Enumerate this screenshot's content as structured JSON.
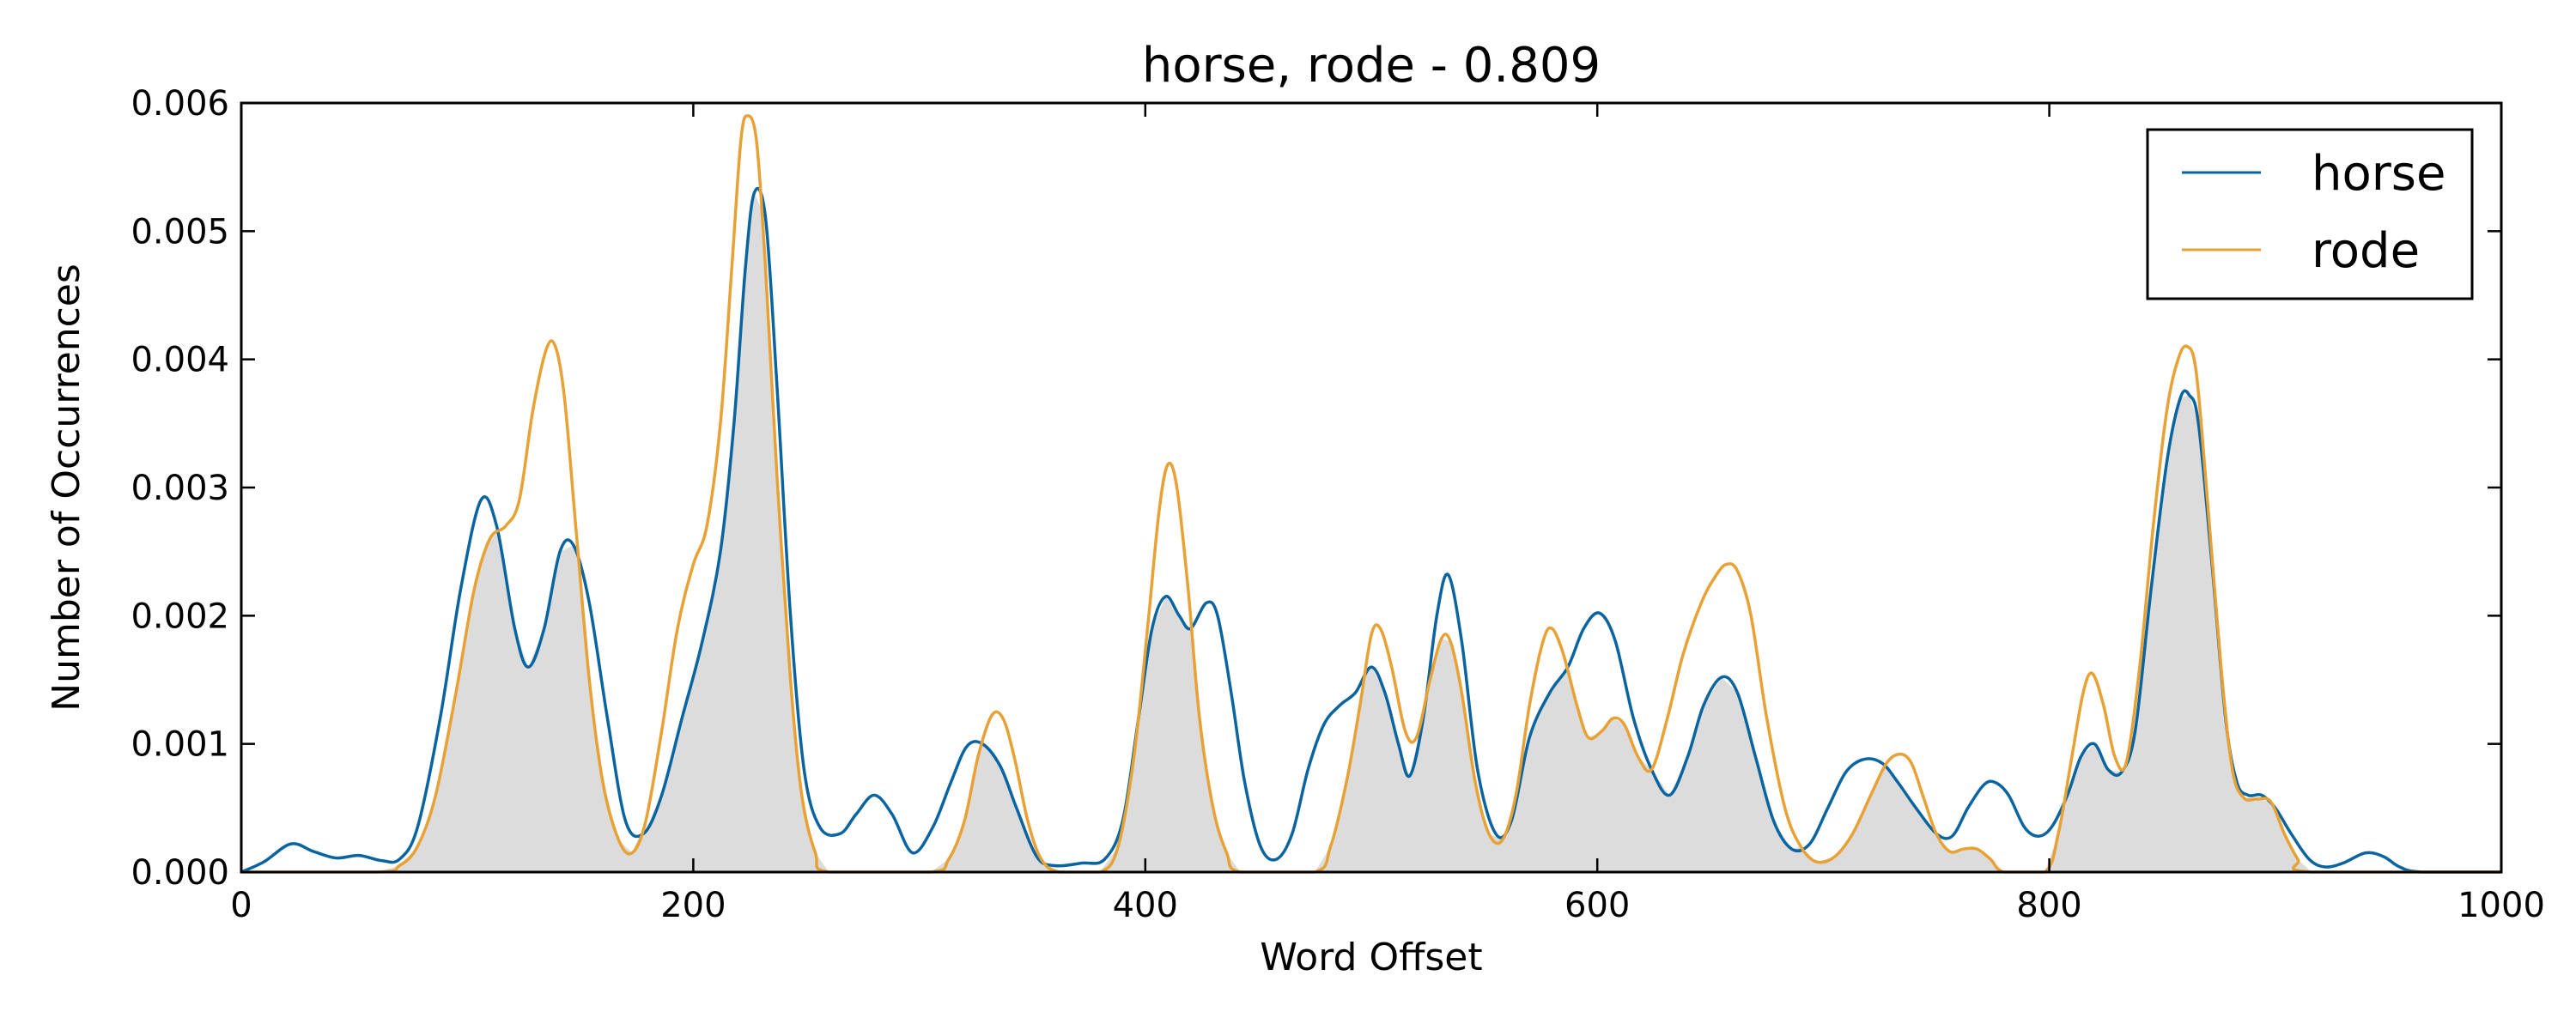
{
  "chart_data": {
    "type": "line",
    "title": "horse, rode - 0.809",
    "xlabel": "Word Offset",
    "ylabel": "Number of Occurrences",
    "xlim": [
      0,
      1000
    ],
    "ylim": [
      0,
      0.006
    ],
    "xticks": [
      0,
      200,
      400,
      600,
      800,
      1000
    ],
    "yticks": [
      0,
      0.001,
      0.002,
      0.003,
      0.004,
      0.005,
      0.006
    ],
    "xtick_labels": [
      "0",
      "200",
      "400",
      "600",
      "800",
      "1000"
    ],
    "ytick_labels": [
      "0.000",
      "0.001",
      "0.002",
      "0.003",
      "0.004",
      "0.005",
      "0.006"
    ],
    "grid": false,
    "legend_position": "top-right",
    "overlap_fill_color": "#dcdcdc",
    "series": [
      {
        "name": "horse",
        "color": "#0a64a0",
        "points": [
          [
            0,
            0.0
          ],
          [
            10,
            8e-05
          ],
          [
            22,
            0.00022
          ],
          [
            32,
            0.00016
          ],
          [
            42,
            0.00011
          ],
          [
            52,
            0.00013
          ],
          [
            62,
            9e-05
          ],
          [
            70,
            0.0001
          ],
          [
            78,
            0.00035
          ],
          [
            88,
            0.0012
          ],
          [
            97,
            0.0022
          ],
          [
            106,
            0.0029
          ],
          [
            113,
            0.0027
          ],
          [
            121,
            0.0019
          ],
          [
            127,
            0.0016
          ],
          [
            134,
            0.0019
          ],
          [
            141,
            0.0025
          ],
          [
            147,
            0.00255
          ],
          [
            154,
            0.0021
          ],
          [
            162,
            0.0012
          ],
          [
            170,
            0.0004
          ],
          [
            178,
            0.0003
          ],
          [
            186,
            0.0006
          ],
          [
            195,
            0.0012
          ],
          [
            204,
            0.0018
          ],
          [
            212,
            0.0025
          ],
          [
            218,
            0.0035
          ],
          [
            223,
            0.0047
          ],
          [
            227,
            0.0053
          ],
          [
            232,
            0.0051
          ],
          [
            237,
            0.0038
          ],
          [
            243,
            0.002
          ],
          [
            249,
            0.0008
          ],
          [
            256,
            0.00035
          ],
          [
            265,
            0.0003
          ],
          [
            272,
            0.00045
          ],
          [
            280,
            0.0006
          ],
          [
            288,
            0.00045
          ],
          [
            297,
            0.00015
          ],
          [
            306,
            0.00035
          ],
          [
            314,
            0.0007
          ],
          [
            321,
            0.00098
          ],
          [
            328,
            0.001
          ],
          [
            336,
            0.00082
          ],
          [
            343,
            0.0005
          ],
          [
            352,
            0.00012
          ],
          [
            360,
            5e-05
          ],
          [
            372,
            7e-05
          ],
          [
            382,
            0.0001
          ],
          [
            390,
            0.0004
          ],
          [
            397,
            0.0012
          ],
          [
            403,
            0.0019
          ],
          [
            409,
            0.00215
          ],
          [
            415,
            0.002
          ],
          [
            420,
            0.0019
          ],
          [
            427,
            0.0021
          ],
          [
            432,
            0.002
          ],
          [
            438,
            0.0014
          ],
          [
            444,
            0.0007
          ],
          [
            451,
            0.0002
          ],
          [
            458,
            0.0001
          ],
          [
            465,
            0.0003
          ],
          [
            472,
            0.0008
          ],
          [
            479,
            0.00115
          ],
          [
            486,
            0.0013
          ],
          [
            493,
            0.0014
          ],
          [
            500,
            0.0016
          ],
          [
            506,
            0.0014
          ],
          [
            512,
            0.001
          ],
          [
            517,
            0.00075
          ],
          [
            523,
            0.0012
          ],
          [
            529,
            0.002
          ],
          [
            534,
            0.00232
          ],
          [
            540,
            0.0018
          ],
          [
            547,
            0.0008
          ],
          [
            555,
            0.0003
          ],
          [
            562,
            0.0004
          ],
          [
            570,
            0.00105
          ],
          [
            579,
            0.0014
          ],
          [
            587,
            0.0016
          ],
          [
            594,
            0.0019
          ],
          [
            601,
            0.00202
          ],
          [
            608,
            0.0018
          ],
          [
            616,
            0.0012
          ],
          [
            624,
            0.0008
          ],
          [
            632,
            0.0006
          ],
          [
            640,
            0.0009
          ],
          [
            647,
            0.0013
          ],
          [
            655,
            0.00152
          ],
          [
            662,
            0.0014
          ],
          [
            670,
            0.0009
          ],
          [
            678,
            0.0004
          ],
          [
            686,
            0.00018
          ],
          [
            694,
            0.00022
          ],
          [
            702,
            0.0005
          ],
          [
            710,
            0.00078
          ],
          [
            718,
            0.00088
          ],
          [
            726,
            0.00085
          ],
          [
            733,
            0.0007
          ],
          [
            741,
            0.0005
          ],
          [
            750,
            0.0003
          ],
          [
            757,
            0.00028
          ],
          [
            764,
            0.0005
          ],
          [
            771,
            0.00068
          ],
          [
            776,
            0.0007
          ],
          [
            782,
            0.0006
          ],
          [
            789,
            0.00035
          ],
          [
            795,
            0.00028
          ],
          [
            801,
            0.00035
          ],
          [
            808,
            0.0006
          ],
          [
            814,
            0.0009
          ],
          [
            820,
            0.001
          ],
          [
            826,
            0.0008
          ],
          [
            832,
            0.00078
          ],
          [
            838,
            0.0011
          ],
          [
            845,
            0.0022
          ],
          [
            852,
            0.0032
          ],
          [
            858,
            0.0037
          ],
          [
            862,
            0.00372
          ],
          [
            866,
            0.0035
          ],
          [
            872,
            0.0024
          ],
          [
            878,
            0.0012
          ],
          [
            883,
            0.0007
          ],
          [
            888,
            0.0006
          ],
          [
            894,
            0.0006
          ],
          [
            900,
            0.0005
          ],
          [
            907,
            0.0003
          ],
          [
            915,
            0.0001
          ],
          [
            922,
            4e-05
          ],
          [
            930,
            7e-05
          ],
          [
            940,
            0.00015
          ],
          [
            948,
            0.00012
          ],
          [
            955,
            4e-05
          ],
          [
            965,
            0.0
          ],
          [
            1000,
            0.0
          ]
        ]
      },
      {
        "name": "rode",
        "color": "#e8a135",
        "points": [
          [
            0,
            0.0
          ],
          [
            60,
            0.0
          ],
          [
            70,
            5e-05
          ],
          [
            78,
            0.0002
          ],
          [
            86,
            0.0006
          ],
          [
            95,
            0.0014
          ],
          [
            103,
            0.0022
          ],
          [
            110,
            0.0026
          ],
          [
            117,
            0.0027
          ],
          [
            123,
            0.0029
          ],
          [
            129,
            0.0036
          ],
          [
            135,
            0.00408
          ],
          [
            139,
            0.0041
          ],
          [
            143,
            0.0037
          ],
          [
            148,
            0.0027
          ],
          [
            154,
            0.0015
          ],
          [
            160,
            0.0007
          ],
          [
            167,
            0.00025
          ],
          [
            173,
            0.00015
          ],
          [
            179,
            0.0004
          ],
          [
            186,
            0.0011
          ],
          [
            193,
            0.0019
          ],
          [
            200,
            0.0024
          ],
          [
            206,
            0.0027
          ],
          [
            212,
            0.0035
          ],
          [
            217,
            0.0047
          ],
          [
            221,
            0.0057
          ],
          [
            224,
            0.0059
          ],
          [
            228,
            0.0057
          ],
          [
            232,
            0.0047
          ],
          [
            237,
            0.0031
          ],
          [
            243,
            0.0015
          ],
          [
            248,
            0.0006
          ],
          [
            254,
            0.00015
          ],
          [
            260,
            0.0
          ],
          [
            305,
            0.0
          ],
          [
            313,
            0.0001
          ],
          [
            320,
            0.0004
          ],
          [
            326,
            0.0009
          ],
          [
            332,
            0.00122
          ],
          [
            337,
            0.0012
          ],
          [
            342,
            0.0009
          ],
          [
            348,
            0.0004
          ],
          [
            354,
            0.0001
          ],
          [
            362,
            0.0
          ],
          [
            380,
            0.0
          ],
          [
            388,
            0.0002
          ],
          [
            395,
            0.0009
          ],
          [
            401,
            0.0019
          ],
          [
            406,
            0.0028
          ],
          [
            410,
            0.00318
          ],
          [
            414,
            0.003
          ],
          [
            419,
            0.0022
          ],
          [
            424,
            0.0012
          ],
          [
            430,
            0.0005
          ],
          [
            436,
            0.00015
          ],
          [
            442,
            0.0
          ],
          [
            475,
            0.0
          ],
          [
            482,
            0.0002
          ],
          [
            489,
            0.0007
          ],
          [
            495,
            0.0013
          ],
          [
            500,
            0.00185
          ],
          [
            504,
            0.0019
          ],
          [
            509,
            0.0016
          ],
          [
            515,
            0.0011
          ],
          [
            520,
            0.00105
          ],
          [
            526,
            0.0015
          ],
          [
            531,
            0.00182
          ],
          [
            535,
            0.0018
          ],
          [
            540,
            0.0014
          ],
          [
            546,
            0.0007
          ],
          [
            552,
            0.0003
          ],
          [
            558,
            0.00025
          ],
          [
            564,
            0.0006
          ],
          [
            570,
            0.0013
          ],
          [
            576,
            0.0018
          ],
          [
            580,
            0.0019
          ],
          [
            585,
            0.0017
          ],
          [
            591,
            0.0013
          ],
          [
            596,
            0.00105
          ],
          [
            602,
            0.0011
          ],
          [
            607,
            0.0012
          ],
          [
            612,
            0.00115
          ],
          [
            618,
            0.0009
          ],
          [
            624,
            0.0008
          ],
          [
            631,
            0.0012
          ],
          [
            638,
            0.0017
          ],
          [
            646,
            0.0021
          ],
          [
            652,
            0.0023
          ],
          [
            657,
            0.0024
          ],
          [
            662,
            0.00235
          ],
          [
            668,
            0.002
          ],
          [
            675,
            0.0012
          ],
          [
            683,
            0.0005
          ],
          [
            690,
            0.0002
          ],
          [
            697,
            8e-05
          ],
          [
            705,
            0.00012
          ],
          [
            713,
            0.0003
          ],
          [
            721,
            0.0006
          ],
          [
            728,
            0.00085
          ],
          [
            734,
            0.00092
          ],
          [
            739,
            0.00085
          ],
          [
            744,
            0.0006
          ],
          [
            750,
            0.0003
          ],
          [
            756,
            0.00016
          ],
          [
            762,
            0.00018
          ],
          [
            768,
            0.00018
          ],
          [
            774,
            0.0001
          ],
          [
            780,
            0.0
          ],
          [
            798,
            0.0
          ],
          [
            804,
            0.0003
          ],
          [
            810,
            0.0009
          ],
          [
            815,
            0.0014
          ],
          [
            819,
            0.00155
          ],
          [
            824,
            0.0013
          ],
          [
            829,
            0.0009
          ],
          [
            834,
            0.00085
          ],
          [
            840,
            0.0016
          ],
          [
            846,
            0.0027
          ],
          [
            852,
            0.0036
          ],
          [
            857,
            0.004
          ],
          [
            861,
            0.0041
          ],
          [
            865,
            0.0039
          ],
          [
            870,
            0.0029
          ],
          [
            876,
            0.0016
          ],
          [
            881,
            0.0008
          ],
          [
            886,
            0.00058
          ],
          [
            892,
            0.00057
          ],
          [
            898,
            0.00055
          ],
          [
            904,
            0.0003
          ],
          [
            910,
            0.0001
          ],
          [
            916,
            0.0
          ],
          [
            1000,
            0.0
          ]
        ]
      }
    ]
  }
}
